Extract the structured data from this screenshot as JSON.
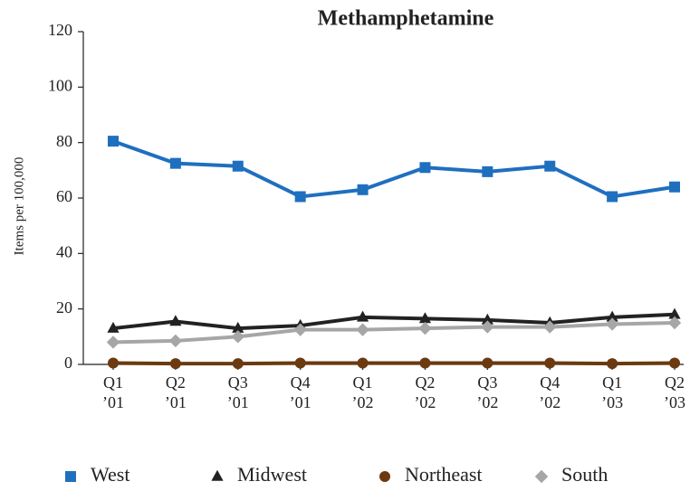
{
  "chart_data": {
    "type": "line",
    "title": "Methamphetamine",
    "y_label": "Items per 100,000",
    "categories": [
      "Q1 ’01",
      "Q2 ’01",
      "Q3 ’01",
      "Q4 ’01",
      "Q1 ’02",
      "Q2 ’02",
      "Q3 ’02",
      "Q4 ’02",
      "Q1 ’03",
      "Q2 ’03"
    ],
    "series": [
      {
        "name": "West",
        "color": "#1f6fbf",
        "marker": "square",
        "values": [
          80.5,
          72.5,
          71.5,
          60.5,
          63,
          71,
          69.5,
          71.5,
          60.5,
          64
        ]
      },
      {
        "name": "Midwest",
        "color": "#222222",
        "marker": "triangle",
        "values": [
          13,
          15.5,
          13,
          14,
          17,
          16.5,
          16,
          15,
          17,
          18
        ]
      },
      {
        "name": "Northeast",
        "color": "#6b3a10",
        "marker": "circle",
        "values": [
          0.5,
          0.3,
          0.3,
          0.5,
          0.5,
          0.5,
          0.5,
          0.5,
          0.3,
          0.5
        ]
      },
      {
        "name": "South",
        "color": "#a6a6a6",
        "marker": "diamond",
        "values": [
          8,
          8.5,
          10,
          12.5,
          12.5,
          13,
          13.5,
          13.5,
          14.5,
          15
        ]
      }
    ],
    "ylim": [
      0,
      120
    ],
    "yticks": [
      0,
      20,
      40,
      60,
      80,
      100,
      120
    ],
    "grid": false
  }
}
